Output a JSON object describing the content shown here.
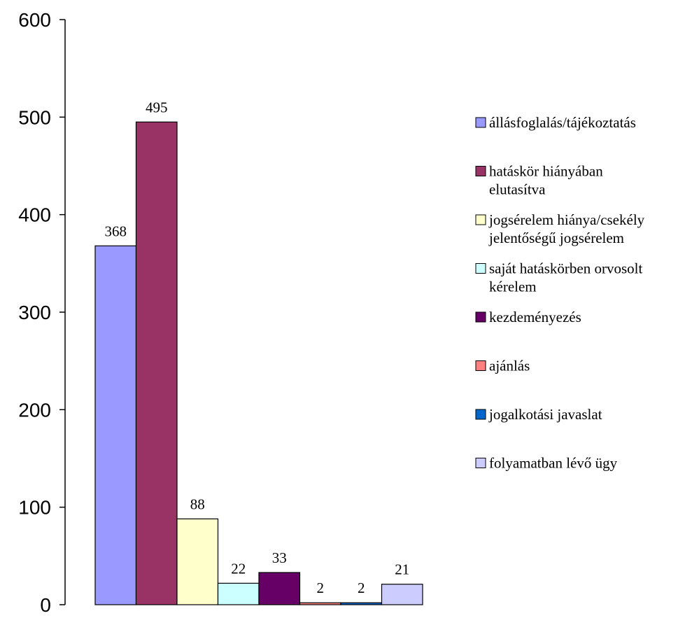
{
  "chart_data": {
    "type": "bar",
    "ylim": [
      0,
      600
    ],
    "yticks": [
      0,
      100,
      200,
      300,
      400,
      500,
      600
    ],
    "grid": false,
    "legend_position": "right",
    "series": [
      {
        "name": "állásfoglalás/tájékoztatás",
        "value": 368,
        "label": "368",
        "color": "#9999FF"
      },
      {
        "name": "hatáskör hiányában elutasítva",
        "value": 495,
        "label": "495",
        "color": "#993366"
      },
      {
        "name": "jogsérelem hiánya/csekély jelentőségű jogsérelem",
        "value": 88,
        "label": "88",
        "color": "#FFFFCC"
      },
      {
        "name": "saját hatáskörben orvosolt kérelem",
        "value": 22,
        "label": "22",
        "color": "#CCFFFF"
      },
      {
        "name": "kezdeményezés",
        "value": 33,
        "label": "33",
        "color": "#660066"
      },
      {
        "name": "ajánlás",
        "value": 2,
        "label": "2",
        "color": "#FF8080"
      },
      {
        "name": "jogalkotási javaslat",
        "value": 2,
        "label": "2",
        "color": "#0066CC"
      },
      {
        "name": "folyamatban lévő ügy",
        "value": 21,
        "label": "21",
        "color": "#CCCCFF"
      }
    ],
    "legend_lines": [
      [
        "állásfoglalás/tájékoztatás"
      ],
      [
        "hatáskör hiányában",
        "elutasítva"
      ],
      [
        "jogsérelem hiánya/csekély",
        "jelentőségű jogsérelem"
      ],
      [
        "saját hatáskörben orvosolt",
        "kérelem"
      ],
      [
        "kezdeményezés"
      ],
      [
        "ajánlás"
      ],
      [
        "jogalkotási javaslat"
      ],
      [
        "folyamatban lévő ügy"
      ]
    ]
  }
}
